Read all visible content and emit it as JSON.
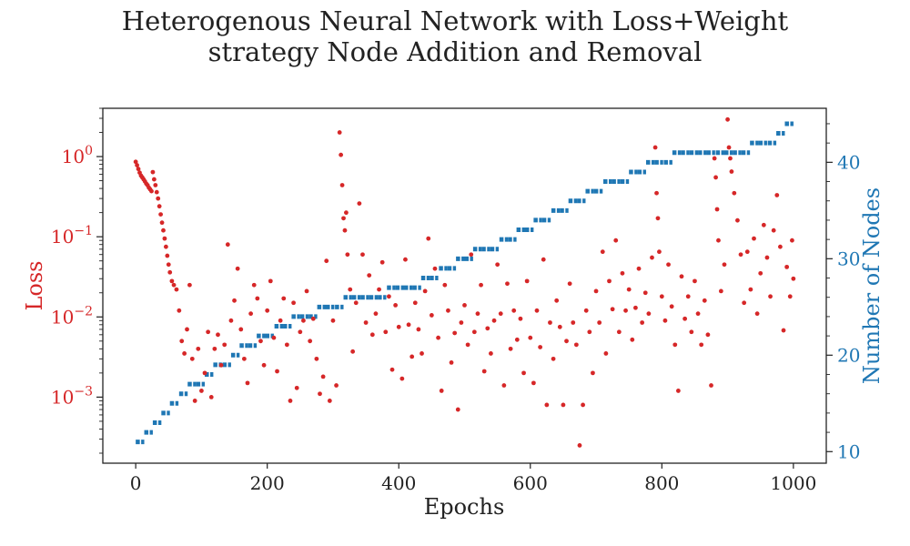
{
  "figure": {
    "title_line1": "Heterogenous Neural Network with Loss+Weight",
    "title_line2": "strategy Node Addition and Removal"
  },
  "colors": {
    "loss": "#d62728",
    "nodes": "#1f77b4",
    "axis": "#222222"
  },
  "chart_data": {
    "type": "scatter",
    "title": "Heterogenous Neural Network with Loss+Weight strategy Node Addition and Removal",
    "xlabel": "Epochs",
    "ylabel_left": "Loss",
    "ylabel_right": "Number of Nodes",
    "xlim": [
      -50,
      1050
    ],
    "x_ticks": [
      0,
      200,
      400,
      600,
      800,
      1000
    ],
    "y_left_scale": "log",
    "y_left_lim": [
      0.00015,
      4
    ],
    "y_left_ticks": [
      "10^0",
      "10^-1",
      "10^-2",
      "10^-3"
    ],
    "y_right_lim": [
      8.8,
      45.6
    ],
    "y_right_ticks": [
      10,
      20,
      30,
      40
    ],
    "grid": false,
    "legend": "none",
    "series": [
      {
        "name": "Loss",
        "axis": "left",
        "marker": "dot",
        "points": [
          [
            0,
            0.86
          ],
          [
            2,
            0.78
          ],
          [
            4,
            0.7
          ],
          [
            6,
            0.63
          ],
          [
            8,
            0.58
          ],
          [
            10,
            0.55
          ],
          [
            12,
            0.52
          ],
          [
            14,
            0.49
          ],
          [
            16,
            0.46
          ],
          [
            18,
            0.44
          ],
          [
            20,
            0.41
          ],
          [
            22,
            0.39
          ],
          [
            24,
            0.37
          ],
          [
            26,
            0.64
          ],
          [
            28,
            0.52
          ],
          [
            30,
            0.44
          ],
          [
            32,
            0.36
          ],
          [
            34,
            0.3
          ],
          [
            36,
            0.24
          ],
          [
            38,
            0.19
          ],
          [
            40,
            0.15
          ],
          [
            42,
            0.12
          ],
          [
            44,
            0.095
          ],
          [
            46,
            0.075
          ],
          [
            48,
            0.058
          ],
          [
            50,
            0.045
          ],
          [
            52,
            0.036
          ],
          [
            55,
            0.028
          ],
          [
            58,
            0.025
          ],
          [
            62,
            0.022
          ],
          [
            66,
            0.012
          ],
          [
            70,
            0.005
          ],
          [
            74,
            0.0035
          ],
          [
            78,
            0.007
          ],
          [
            82,
            0.025
          ],
          [
            86,
            0.003
          ],
          [
            90,
            0.0009
          ],
          [
            95,
            0.004
          ],
          [
            100,
            0.0012
          ],
          [
            105,
            0.002
          ],
          [
            110,
            0.0065
          ],
          [
            115,
            0.001
          ],
          [
            120,
            0.004
          ],
          [
            125,
            0.006
          ],
          [
            130,
            0.0025
          ],
          [
            135,
            0.0045
          ],
          [
            140,
            0.08
          ],
          [
            145,
            0.009
          ],
          [
            150,
            0.016
          ],
          [
            155,
            0.04
          ],
          [
            160,
            0.007
          ],
          [
            165,
            0.003
          ],
          [
            170,
            0.0015
          ],
          [
            175,
            0.011
          ],
          [
            180,
            0.025
          ],
          [
            185,
            0.017
          ],
          [
            190,
            0.005
          ],
          [
            195,
            0.0025
          ],
          [
            200,
            0.012
          ],
          [
            205,
            0.028
          ],
          [
            210,
            0.0055
          ],
          [
            215,
            0.0021
          ],
          [
            220,
            0.009
          ],
          [
            225,
            0.017
          ],
          [
            230,
            0.0045
          ],
          [
            235,
            0.0009
          ],
          [
            240,
            0.015
          ],
          [
            245,
            0.0013
          ],
          [
            250,
            0.0065
          ],
          [
            255,
            0.009
          ],
          [
            260,
            0.021
          ],
          [
            265,
            0.005
          ],
          [
            270,
            0.0095
          ],
          [
            275,
            0.003
          ],
          [
            280,
            0.0011
          ],
          [
            285,
            0.0018
          ],
          [
            290,
            0.05
          ],
          [
            295,
            0.0009
          ],
          [
            300,
            0.009
          ],
          [
            305,
            0.0014
          ],
          [
            310,
            2.0
          ],
          [
            312,
            1.05
          ],
          [
            314,
            0.44
          ],
          [
            316,
            0.17
          ],
          [
            318,
            0.12
          ],
          [
            320,
            0.2
          ],
          [
            322,
            0.06
          ],
          [
            326,
            0.022
          ],
          [
            330,
            0.0037
          ],
          [
            335,
            0.015
          ],
          [
            340,
            0.26
          ],
          [
            345,
            0.06
          ],
          [
            350,
            0.0085
          ],
          [
            355,
            0.033
          ],
          [
            360,
            0.006
          ],
          [
            365,
            0.011
          ],
          [
            370,
            0.022
          ],
          [
            375,
            0.048
          ],
          [
            380,
            0.0065
          ],
          [
            385,
            0.018
          ],
          [
            390,
            0.0022
          ],
          [
            395,
            0.014
          ],
          [
            400,
            0.0075
          ],
          [
            405,
            0.0017
          ],
          [
            410,
            0.052
          ],
          [
            415,
            0.008
          ],
          [
            420,
            0.0032
          ],
          [
            425,
            0.015
          ],
          [
            430,
            0.007
          ],
          [
            435,
            0.0035
          ],
          [
            440,
            0.021
          ],
          [
            445,
            0.095
          ],
          [
            450,
            0.0105
          ],
          [
            455,
            0.04
          ],
          [
            460,
            0.0055
          ],
          [
            465,
            0.0012
          ],
          [
            470,
            0.025
          ],
          [
            475,
            0.012
          ],
          [
            480,
            0.0027
          ],
          [
            485,
            0.0063
          ],
          [
            490,
            0.0007
          ],
          [
            495,
            0.0085
          ],
          [
            500,
            0.014
          ],
          [
            505,
            0.0045
          ],
          [
            510,
            0.06
          ],
          [
            515,
            0.0065
          ],
          [
            520,
            0.011
          ],
          [
            525,
            0.025
          ],
          [
            530,
            0.0021
          ],
          [
            535,
            0.0072
          ],
          [
            540,
            0.0035
          ],
          [
            545,
            0.009
          ],
          [
            550,
            0.045
          ],
          [
            555,
            0.011
          ],
          [
            560,
            0.0014
          ],
          [
            565,
            0.026
          ],
          [
            570,
            0.004
          ],
          [
            575,
            0.012
          ],
          [
            580,
            0.0052
          ],
          [
            585,
            0.0095
          ],
          [
            590,
            0.002
          ],
          [
            595,
            0.028
          ],
          [
            600,
            0.0055
          ],
          [
            605,
            0.0015
          ],
          [
            610,
            0.012
          ],
          [
            615,
            0.0042
          ],
          [
            620,
            0.052
          ],
          [
            625,
            0.0008
          ],
          [
            630,
            0.0085
          ],
          [
            635,
            0.003
          ],
          [
            640,
            0.016
          ],
          [
            645,
            0.0075
          ],
          [
            650,
            0.0008
          ],
          [
            655,
            0.005
          ],
          [
            660,
            0.026
          ],
          [
            665,
            0.0085
          ],
          [
            670,
            0.0045
          ],
          [
            675,
            0.00025
          ],
          [
            680,
            0.0008
          ],
          [
            685,
            0.012
          ],
          [
            690,
            0.0065
          ],
          [
            695,
            0.002
          ],
          [
            700,
            0.021
          ],
          [
            705,
            0.0085
          ],
          [
            710,
            0.065
          ],
          [
            715,
            0.0035
          ],
          [
            720,
            0.028
          ],
          [
            725,
            0.0125
          ],
          [
            730,
            0.09
          ],
          [
            735,
            0.0065
          ],
          [
            740,
            0.035
          ],
          [
            745,
            0.012
          ],
          [
            750,
            0.022
          ],
          [
            755,
            0.0052
          ],
          [
            760,
            0.013
          ],
          [
            765,
            0.04
          ],
          [
            770,
            0.0085
          ],
          [
            775,
            0.02
          ],
          [
            780,
            0.011
          ],
          [
            785,
            0.055
          ],
          [
            790,
            1.3
          ],
          [
            792,
            0.35
          ],
          [
            794,
            0.17
          ],
          [
            796,
            0.065
          ],
          [
            800,
            0.018
          ],
          [
            805,
            0.009
          ],
          [
            810,
            0.045
          ],
          [
            815,
            0.0135
          ],
          [
            820,
            0.0045
          ],
          [
            825,
            0.0012
          ],
          [
            830,
            0.032
          ],
          [
            835,
            0.0095
          ],
          [
            840,
            0.018
          ],
          [
            845,
            0.0065
          ],
          [
            850,
            0.028
          ],
          [
            855,
            0.011
          ],
          [
            860,
            0.0045
          ],
          [
            865,
            0.016
          ],
          [
            870,
            0.006
          ],
          [
            875,
            0.0014
          ],
          [
            880,
            0.95
          ],
          [
            882,
            0.55
          ],
          [
            884,
            0.22
          ],
          [
            886,
            0.09
          ],
          [
            890,
            0.021
          ],
          [
            895,
            0.045
          ],
          [
            900,
            2.9
          ],
          [
            902,
            1.3
          ],
          [
            904,
            0.95
          ],
          [
            906,
            0.65
          ],
          [
            910,
            0.35
          ],
          [
            915,
            0.16
          ],
          [
            920,
            0.06
          ],
          [
            925,
            0.015
          ],
          [
            930,
            0.065
          ],
          [
            935,
            0.022
          ],
          [
            940,
            0.095
          ],
          [
            945,
            0.011
          ],
          [
            950,
            0.035
          ],
          [
            955,
            0.14
          ],
          [
            960,
            0.055
          ],
          [
            965,
            0.018
          ],
          [
            970,
            0.12
          ],
          [
            975,
            0.33
          ],
          [
            980,
            0.075
          ],
          [
            985,
            0.0068
          ],
          [
            990,
            0.042
          ],
          [
            995,
            0.018
          ],
          [
            998,
            0.09
          ],
          [
            1000,
            0.03
          ]
        ]
      },
      {
        "name": "Number of Nodes",
        "axis": "right",
        "marker": "dash",
        "step_epochs": [
          0,
          13,
          26,
          39,
          52,
          66,
          79,
          92,
          105,
          118,
          132,
          145,
          158,
          171,
          184,
          197,
          211,
          224,
          237,
          250,
          263,
          276,
          289,
          303,
          316,
          329,
          342,
          355,
          368,
          382,
          395,
          408,
          421,
          434,
          447,
          461,
          474,
          487,
          500,
          513,
          526,
          539,
          553,
          566,
          579,
          592,
          605,
          618,
          632,
          645,
          658,
          671,
          684,
          697,
          711,
          724,
          737,
          750,
          763,
          776,
          789,
          803,
          816,
          829,
          842,
          855,
          868,
          882,
          895,
          908,
          921,
          934,
          947,
          961,
          974,
          987,
          1000
        ],
        "step_values": [
          11,
          12,
          13,
          14,
          15,
          16,
          17,
          17,
          18,
          19,
          19,
          20,
          21,
          21,
          22,
          22,
          23,
          23,
          24,
          24,
          24,
          25,
          25,
          25,
          26,
          26,
          26,
          26,
          26,
          27,
          27,
          27,
          27,
          28,
          28,
          29,
          29,
          30,
          30,
          31,
          31,
          31,
          32,
          32,
          33,
          33,
          34,
          34,
          35,
          35,
          36,
          36,
          37,
          37,
          38,
          38,
          38,
          39,
          39,
          40,
          40,
          40,
          41,
          41,
          41,
          41,
          41,
          41,
          41,
          41,
          41,
          42,
          42,
          42,
          43,
          44,
          44
        ]
      }
    ]
  }
}
